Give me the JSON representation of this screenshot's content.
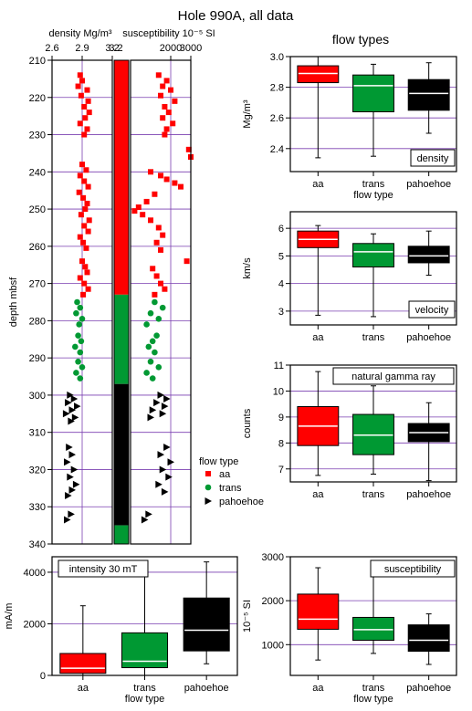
{
  "title": "Hole 990A, all data",
  "right_heading": "flow types",
  "colors": {
    "aa": "#ff0000",
    "trans": "#009933",
    "pahoehoe": "#000000",
    "grid": "#7a3fb0",
    "median": "#ffffff"
  },
  "legend": {
    "title": "flow type",
    "items": [
      {
        "label": "aa",
        "marker": "square",
        "color": "#ff0000"
      },
      {
        "label": "trans",
        "marker": "circle",
        "color": "#009933"
      },
      {
        "label": "pahoehoe",
        "marker": "triangle",
        "color": "#000000"
      }
    ]
  },
  "chart_data": [
    {
      "id": "density_log",
      "type": "scatter",
      "title": "density Mg/m³",
      "ylabel": "depth mbsf",
      "xlim": [
        2.6,
        3.2
      ],
      "xticks": [
        "2.6",
        "2.9",
        "3.2"
      ],
      "ylim": [
        340,
        210
      ],
      "yticks": [
        210,
        220,
        230,
        240,
        250,
        260,
        270,
        280,
        290,
        300,
        310,
        320,
        330,
        340
      ],
      "grid": true,
      "series": [
        {
          "name": "aa",
          "points": [
            [
              2.88,
              214.0
            ],
            [
              2.9,
              215.5
            ],
            [
              2.86,
              217.0
            ],
            [
              2.95,
              218.0
            ],
            [
              2.89,
              219.5
            ],
            [
              2.96,
              221.0
            ],
            [
              2.92,
              222.5
            ],
            [
              2.97,
              224.0
            ],
            [
              2.93,
              225.5
            ],
            [
              2.88,
              227.0
            ],
            [
              2.95,
              228.5
            ],
            [
              2.92,
              230.0
            ],
            [
              2.9,
              238.0
            ],
            [
              2.94,
              239.5
            ],
            [
              2.88,
              241.0
            ],
            [
              2.92,
              242.5
            ],
            [
              2.96,
              244.0
            ],
            [
              2.87,
              245.5
            ],
            [
              2.91,
              247.0
            ],
            [
              2.95,
              248.5
            ],
            [
              2.93,
              250.0
            ],
            [
              2.89,
              251.5
            ],
            [
              2.97,
              253.0
            ],
            [
              2.92,
              254.5
            ],
            [
              2.96,
              256.0
            ],
            [
              2.88,
              257.5
            ],
            [
              2.91,
              259.0
            ],
            [
              2.94,
              260.5
            ],
            [
              2.9,
              264.0
            ],
            [
              2.93,
              265.5
            ],
            [
              2.95,
              267.0
            ],
            [
              2.88,
              268.5
            ],
            [
              2.92,
              270.0
            ],
            [
              2.96,
              271.5
            ],
            [
              2.91,
              273.0
            ]
          ]
        },
        {
          "name": "trans",
          "points": [
            [
              2.85,
              275.0
            ],
            [
              2.88,
              276.5
            ],
            [
              2.84,
              278.0
            ],
            [
              2.9,
              279.5
            ],
            [
              2.87,
              281.0
            ],
            [
              2.86,
              284.0
            ],
            [
              2.89,
              285.5
            ],
            [
              2.83,
              287.0
            ],
            [
              2.88,
              288.5
            ],
            [
              2.86,
              291.0
            ],
            [
              2.9,
              292.5
            ],
            [
              2.84,
              294.0
            ],
            [
              2.88,
              295.5
            ]
          ]
        },
        {
          "name": "pahoehoe",
          "points": [
            [
              2.78,
              300.0
            ],
            [
              2.82,
              301.0
            ],
            [
              2.76,
              302.0
            ],
            [
              2.85,
              303.0
            ],
            [
              2.8,
              304.0
            ],
            [
              2.74,
              305.0
            ],
            [
              2.83,
              306.0
            ],
            [
              2.79,
              307.0
            ],
            [
              2.77,
              314.0
            ],
            [
              2.8,
              316.0
            ],
            [
              2.75,
              318.0
            ],
            [
              2.82,
              320.0
            ],
            [
              2.78,
              322.0
            ],
            [
              2.84,
              324.0
            ],
            [
              2.8,
              325.5
            ],
            [
              2.76,
              327.0
            ],
            [
              2.79,
              332.0
            ],
            [
              2.75,
              333.5
            ]
          ]
        }
      ]
    },
    {
      "id": "flowtype_column",
      "type": "bar",
      "segments": [
        {
          "name": "aa",
          "from": 210,
          "to": 273
        },
        {
          "name": "trans",
          "from": 273,
          "to": 297
        },
        {
          "name": "pahoehoe",
          "from": 297,
          "to": 335
        },
        {
          "name": "trans",
          "from": 335,
          "to": 340
        }
      ]
    },
    {
      "id": "susceptibility_log",
      "type": "scatter",
      "title": "susceptibility 10⁻⁵ SI",
      "xlim": [
        0,
        3000
      ],
      "xticks": [
        "2000",
        "3000"
      ],
      "ylim": [
        340,
        210
      ],
      "grid": true,
      "series": [
        {
          "name": "aa",
          "points": [
            [
              1400,
              214.0
            ],
            [
              1800,
              215.5
            ],
            [
              1600,
              217.0
            ],
            [
              2000,
              218.0
            ],
            [
              1500,
              219.5
            ],
            [
              2200,
              221.0
            ],
            [
              1700,
              222.5
            ],
            [
              1900,
              224.0
            ],
            [
              1600,
              225.5
            ],
            [
              2100,
              227.0
            ],
            [
              1800,
              228.5
            ],
            [
              1700,
              230.0
            ],
            [
              2900,
              234.0
            ],
            [
              3000,
              236.0
            ],
            [
              1000,
              240.0
            ],
            [
              1500,
              241.0
            ],
            [
              1800,
              242.0
            ],
            [
              2200,
              243.0
            ],
            [
              2500,
              244.0
            ],
            [
              1200,
              246.0
            ],
            [
              800,
              248.0
            ],
            [
              400,
              249.5
            ],
            [
              200,
              250.5
            ],
            [
              600,
              251.5
            ],
            [
              1000,
              253.0
            ],
            [
              1400,
              255.0
            ],
            [
              1600,
              257.0
            ],
            [
              1300,
              259.0
            ],
            [
              1500,
              261.0
            ],
            [
              2800,
              264.0
            ],
            [
              1100,
              266.0
            ],
            [
              1300,
              268.0
            ],
            [
              1500,
              270.0
            ],
            [
              1700,
              271.5
            ],
            [
              1200,
              273.0
            ]
          ]
        },
        {
          "name": "trans",
          "points": [
            [
              1200,
              275.0
            ],
            [
              1600,
              276.5
            ],
            [
              1000,
              278.0
            ],
            [
              1400,
              279.5
            ],
            [
              800,
              281.0
            ],
            [
              1300,
              284.0
            ],
            [
              1100,
              285.5
            ],
            [
              900,
              287.0
            ],
            [
              1200,
              288.5
            ],
            [
              1000,
              291.0
            ],
            [
              1400,
              292.5
            ],
            [
              800,
              294.0
            ],
            [
              1100,
              295.5
            ]
          ]
        },
        {
          "name": "pahoehoe",
          "points": [
            [
              1500,
              300.0
            ],
            [
              1800,
              301.0
            ],
            [
              1300,
              302.0
            ],
            [
              1700,
              303.0
            ],
            [
              1100,
              304.0
            ],
            [
              1600,
              305.0
            ],
            [
              1000,
              306.0
            ],
            [
              1800,
              314.0
            ],
            [
              1500,
              316.0
            ],
            [
              2000,
              318.0
            ],
            [
              1600,
              320.0
            ],
            [
              1900,
              322.0
            ],
            [
              1400,
              324.0
            ],
            [
              1700,
              326.0
            ],
            [
              900,
              332.0
            ],
            [
              700,
              333.5
            ]
          ]
        }
      ]
    },
    {
      "id": "density_box",
      "type": "box",
      "ylabel": "Mg/m³",
      "xlabel": "flow type",
      "annotation": "density",
      "ylim": [
        2.25,
        3.0
      ],
      "yticks": [
        "2.4",
        "2.6",
        "2.8",
        "3.0"
      ],
      "categories": [
        "aa",
        "trans",
        "pahoehoe"
      ],
      "boxes": [
        {
          "min": 2.34,
          "q1": 2.83,
          "median": 2.89,
          "q3": 2.94,
          "max": 3.0
        },
        {
          "min": 2.35,
          "q1": 2.64,
          "median": 2.81,
          "q3": 2.88,
          "max": 2.95
        },
        {
          "min": 2.5,
          "q1": 2.65,
          "median": 2.76,
          "q3": 2.85,
          "max": 2.96
        }
      ]
    },
    {
      "id": "velocity_box",
      "type": "box",
      "ylabel": "km/s",
      "annotation": "velocity",
      "ylim": [
        2.5,
        6.6
      ],
      "yticks": [
        "3",
        "4",
        "5",
        "6"
      ],
      "categories": [
        "aa",
        "trans",
        "pahoehoe"
      ],
      "boxes": [
        {
          "min": 2.85,
          "q1": 5.3,
          "median": 5.6,
          "q3": 5.9,
          "max": 6.1
        },
        {
          "min": 2.8,
          "q1": 4.6,
          "median": 5.15,
          "q3": 5.45,
          "max": 5.8
        },
        {
          "min": 4.3,
          "q1": 4.75,
          "median": 5.0,
          "q3": 5.35,
          "max": 5.9
        }
      ]
    },
    {
      "id": "gamma_box",
      "type": "box",
      "ylabel": "counts",
      "annotation": "natural gamma ray",
      "ylim": [
        6.5,
        11.0
      ],
      "yticks": [
        "7",
        "8",
        "9",
        "10",
        "11"
      ],
      "categories": [
        "aa",
        "trans",
        "pahoehoe"
      ],
      "boxes": [
        {
          "min": 6.75,
          "q1": 7.9,
          "median": 8.65,
          "q3": 9.4,
          "max": 10.75
        },
        {
          "min": 6.8,
          "q1": 7.55,
          "median": 8.3,
          "q3": 9.1,
          "max": 10.2
        },
        {
          "min": 6.55,
          "q1": 8.05,
          "median": 8.4,
          "q3": 8.75,
          "max": 9.55
        }
      ]
    },
    {
      "id": "intensity_box",
      "type": "box",
      "ylabel": "mA/m",
      "xlabel": "flow type",
      "annotation": "intensity 30 mT",
      "ylim": [
        0,
        4600
      ],
      "yticks": [
        "0",
        "2000",
        "4000"
      ],
      "categories": [
        "aa",
        "trans",
        "pahoehoe"
      ],
      "boxes": [
        {
          "min": 0,
          "q1": 80,
          "median": 280,
          "q3": 850,
          "max": 2700
        },
        {
          "min": 0,
          "q1": 300,
          "median": 550,
          "q3": 1650,
          "max": 4300
        },
        {
          "min": 450,
          "q1": 950,
          "median": 1750,
          "q3": 3000,
          "max": 4400
        }
      ]
    },
    {
      "id": "susceptibility_box",
      "type": "box",
      "ylabel": "10⁻⁵ SI",
      "xlabel": "flow type",
      "annotation": "susceptibility",
      "ylim": [
        300,
        3000
      ],
      "yticks": [
        "1000",
        "2000",
        "3000"
      ],
      "categories": [
        "aa",
        "trans",
        "pahoehoe"
      ],
      "boxes": [
        {
          "min": 650,
          "q1": 1350,
          "median": 1580,
          "q3": 2150,
          "max": 2750
        },
        {
          "min": 800,
          "q1": 1100,
          "median": 1340,
          "q3": 1620,
          "max": 2650
        },
        {
          "min": 550,
          "q1": 850,
          "median": 1100,
          "q3": 1450,
          "max": 1700
        }
      ]
    }
  ]
}
